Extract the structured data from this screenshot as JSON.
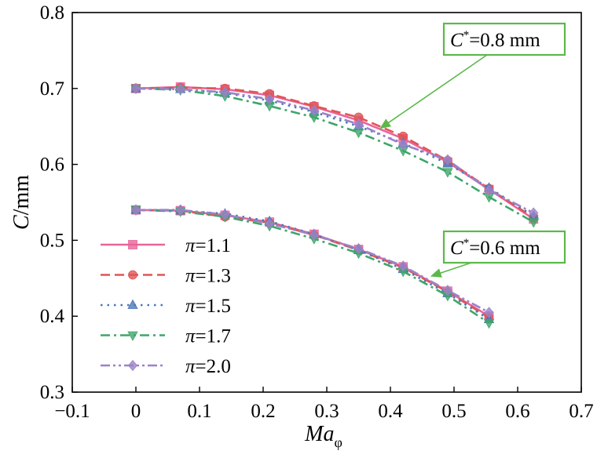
{
  "chart_data": {
    "type": "line",
    "title": "",
    "xlabel": "Ma",
    "xlabel_sub": "φ",
    "ylabel": "C/mm",
    "xlim": [
      -0.1,
      0.7
    ],
    "ylim": [
      0.3,
      0.8
    ],
    "xticks": [
      -0.1,
      0,
      0.1,
      0.2,
      0.3,
      0.4,
      0.5,
      0.6,
      0.7
    ],
    "xtick_labels": [
      "−0.1",
      "0",
      "0.1",
      "0.2",
      "0.3",
      "0.4",
      "0.5",
      "0.6",
      "0.7"
    ],
    "yticks": [
      0.3,
      0.4,
      0.5,
      0.6,
      0.7,
      0.8
    ],
    "ytick_labels": [
      "0.3",
      "0.4",
      "0.5",
      "0.6",
      "0.7",
      "0.8"
    ],
    "grid": false,
    "legend_position": "lower-left",
    "series": [
      {
        "name": "π=1.1",
        "color": "#e8659a",
        "dash": "solid",
        "marker": "square",
        "groups": [
          {
            "x": [
              0,
              0.07,
              0.14,
              0.21,
              0.28,
              0.35,
              0.42,
              0.49,
              0.555,
              0.625
            ],
            "y": [
              0.7,
              0.702,
              0.699,
              0.691,
              0.676,
              0.658,
              0.634,
              0.603,
              0.567,
              0.528
            ]
          },
          {
            "x": [
              0,
              0.07,
              0.14,
              0.21,
              0.28,
              0.35,
              0.42,
              0.49,
              0.555
            ],
            "y": [
              0.54,
              0.539,
              0.533,
              0.524,
              0.508,
              0.488,
              0.465,
              0.433,
              0.4
            ]
          }
        ]
      },
      {
        "name": "π=1.3",
        "color": "#e05555",
        "dash": "dashed",
        "marker": "circle",
        "groups": [
          {
            "x": [
              0,
              0.07,
              0.14,
              0.21,
              0.28,
              0.35,
              0.42,
              0.49,
              0.555,
              0.625
            ],
            "y": [
              0.7,
              0.701,
              0.7,
              0.693,
              0.677,
              0.662,
              0.637,
              0.605,
              0.568,
              0.53
            ]
          },
          {
            "x": [
              0,
              0.07,
              0.14,
              0.21,
              0.28,
              0.35,
              0.42,
              0.49,
              0.555
            ],
            "y": [
              0.54,
              0.539,
              0.531,
              0.523,
              0.507,
              0.487,
              0.464,
              0.432,
              0.398
            ]
          }
        ]
      },
      {
        "name": "π=1.5",
        "color": "#4a78b8",
        "dash": "dotted",
        "marker": "triangle-up",
        "groups": [
          {
            "x": [
              0,
              0.07,
              0.14,
              0.21,
              0.28,
              0.35,
              0.42,
              0.49,
              0.555,
              0.625
            ],
            "y": [
              0.7,
              0.699,
              0.694,
              0.684,
              0.669,
              0.65,
              0.628,
              0.601,
              0.569,
              0.532
            ]
          },
          {
            "x": [
              0,
              0.07,
              0.14,
              0.21,
              0.28,
              0.35,
              0.42,
              0.49,
              0.555
            ],
            "y": [
              0.54,
              0.539,
              0.535,
              0.525,
              0.508,
              0.487,
              0.462,
              0.43,
              0.396
            ]
          }
        ]
      },
      {
        "name": "π=1.7",
        "color": "#3ea66a",
        "dash": "dashdot",
        "marker": "triangle-down",
        "groups": [
          {
            "x": [
              0,
              0.07,
              0.14,
              0.21,
              0.28,
              0.35,
              0.42,
              0.49,
              0.555,
              0.625
            ],
            "y": [
              0.7,
              0.698,
              0.69,
              0.677,
              0.662,
              0.642,
              0.618,
              0.59,
              0.557,
              0.524
            ]
          },
          {
            "x": [
              0,
              0.07,
              0.14,
              0.21,
              0.28,
              0.35,
              0.42,
              0.49,
              0.555
            ],
            "y": [
              0.54,
              0.538,
              0.531,
              0.519,
              0.502,
              0.483,
              0.459,
              0.427,
              0.391
            ]
          }
        ]
      },
      {
        "name": "π=2.0",
        "color": "#9b82c8",
        "dash": "dashdotdot",
        "marker": "diamond",
        "groups": [
          {
            "x": [
              0,
              0.07,
              0.14,
              0.21,
              0.28,
              0.35,
              0.42,
              0.49,
              0.555,
              0.625
            ],
            "y": [
              0.7,
              0.699,
              0.695,
              0.686,
              0.671,
              0.653,
              0.626,
              0.606,
              0.566,
              0.536
            ]
          },
          {
            "x": [
              0,
              0.07,
              0.14,
              0.21,
              0.28,
              0.35,
              0.42,
              0.49,
              0.555
            ],
            "y": [
              0.54,
              0.54,
              0.534,
              0.522,
              0.507,
              0.489,
              0.466,
              0.434,
              0.405
            ]
          }
        ]
      }
    ],
    "annotations": [
      {
        "prefix": "C",
        "sup": "*",
        "suffix": "=0.8 mm",
        "target_x": 0.385,
        "target_y": 0.648
      },
      {
        "prefix": "C",
        "sup": "*",
        "suffix": "=0.6 mm",
        "target_x": 0.465,
        "target_y": 0.453
      }
    ],
    "annotation_color": "#5cb84a"
  }
}
